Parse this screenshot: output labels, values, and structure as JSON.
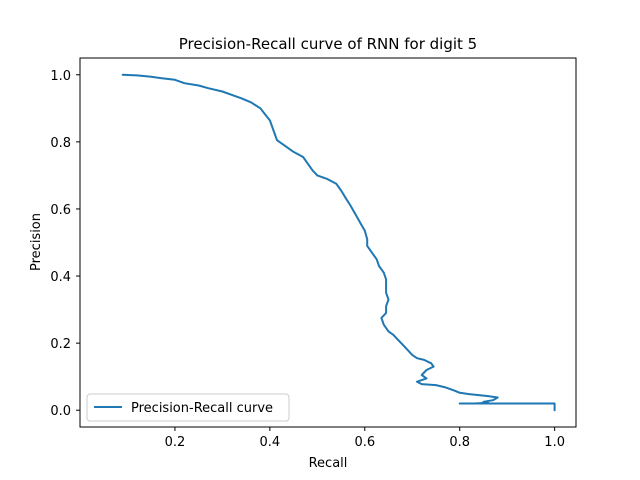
{
  "chart_data": {
    "type": "line",
    "title": "Precision-Recall curve of RNN for digit 5",
    "xlabel": "Recall",
    "ylabel": "Precision",
    "xlim": [
      0.0,
      1.045
    ],
    "ylim": [
      -0.05,
      1.05
    ],
    "xticks": [
      "0.2",
      "0.4",
      "0.6",
      "0.8",
      "1.0"
    ],
    "yticks": [
      "0.0",
      "0.2",
      "0.4",
      "0.6",
      "0.8",
      "1.0"
    ],
    "grid": false,
    "legend": {
      "position": "lower-left",
      "entries": [
        "Precision-Recall curve"
      ]
    },
    "series": [
      {
        "name": "Precision-Recall curve",
        "color": "#1f77b4",
        "points": [
          [
            0.09,
            1.0
          ],
          [
            0.12,
            0.998
          ],
          [
            0.15,
            0.994
          ],
          [
            0.17,
            0.99
          ],
          [
            0.2,
            0.985
          ],
          [
            0.22,
            0.975
          ],
          [
            0.25,
            0.968
          ],
          [
            0.27,
            0.96
          ],
          [
            0.3,
            0.95
          ],
          [
            0.32,
            0.94
          ],
          [
            0.34,
            0.93
          ],
          [
            0.36,
            0.918
          ],
          [
            0.38,
            0.9
          ],
          [
            0.39,
            0.882
          ],
          [
            0.4,
            0.864
          ],
          [
            0.405,
            0.845
          ],
          [
            0.41,
            0.825
          ],
          [
            0.415,
            0.805
          ],
          [
            0.43,
            0.79
          ],
          [
            0.45,
            0.77
          ],
          [
            0.47,
            0.755
          ],
          [
            0.48,
            0.735
          ],
          [
            0.49,
            0.715
          ],
          [
            0.5,
            0.7
          ],
          [
            0.52,
            0.69
          ],
          [
            0.54,
            0.675
          ],
          [
            0.55,
            0.655
          ],
          [
            0.56,
            0.632
          ],
          [
            0.57,
            0.61
          ],
          [
            0.58,
            0.585
          ],
          [
            0.59,
            0.56
          ],
          [
            0.6,
            0.535
          ],
          [
            0.605,
            0.51
          ],
          [
            0.605,
            0.49
          ],
          [
            0.615,
            0.47
          ],
          [
            0.625,
            0.45
          ],
          [
            0.63,
            0.43
          ],
          [
            0.64,
            0.41
          ],
          [
            0.645,
            0.39
          ],
          [
            0.645,
            0.37
          ],
          [
            0.645,
            0.35
          ],
          [
            0.65,
            0.33
          ],
          [
            0.645,
            0.31
          ],
          [
            0.645,
            0.29
          ],
          [
            0.635,
            0.275
          ],
          [
            0.64,
            0.255
          ],
          [
            0.65,
            0.235
          ],
          [
            0.66,
            0.225
          ],
          [
            0.67,
            0.21
          ],
          [
            0.68,
            0.195
          ],
          [
            0.69,
            0.18
          ],
          [
            0.7,
            0.165
          ],
          [
            0.71,
            0.155
          ],
          [
            0.725,
            0.15
          ],
          [
            0.74,
            0.14
          ],
          [
            0.745,
            0.13
          ],
          [
            0.73,
            0.12
          ],
          [
            0.72,
            0.105
          ],
          [
            0.73,
            0.095
          ],
          [
            0.71,
            0.085
          ],
          [
            0.72,
            0.078
          ],
          [
            0.75,
            0.075
          ],
          [
            0.77,
            0.068
          ],
          [
            0.79,
            0.058
          ],
          [
            0.8,
            0.052
          ],
          [
            0.82,
            0.048
          ],
          [
            0.84,
            0.045
          ],
          [
            0.86,
            0.042
          ],
          [
            0.88,
            0.038
          ],
          [
            0.87,
            0.03
          ],
          [
            0.85,
            0.025
          ],
          [
            0.86,
            0.022
          ],
          [
            0.83,
            0.02
          ],
          [
            0.8,
            0.02
          ],
          [
            0.85,
            0.02
          ],
          [
            0.9,
            0.02
          ],
          [
            0.95,
            0.02
          ],
          [
            1.0,
            0.02
          ],
          [
            1.0,
            0.0
          ]
        ]
      }
    ]
  }
}
